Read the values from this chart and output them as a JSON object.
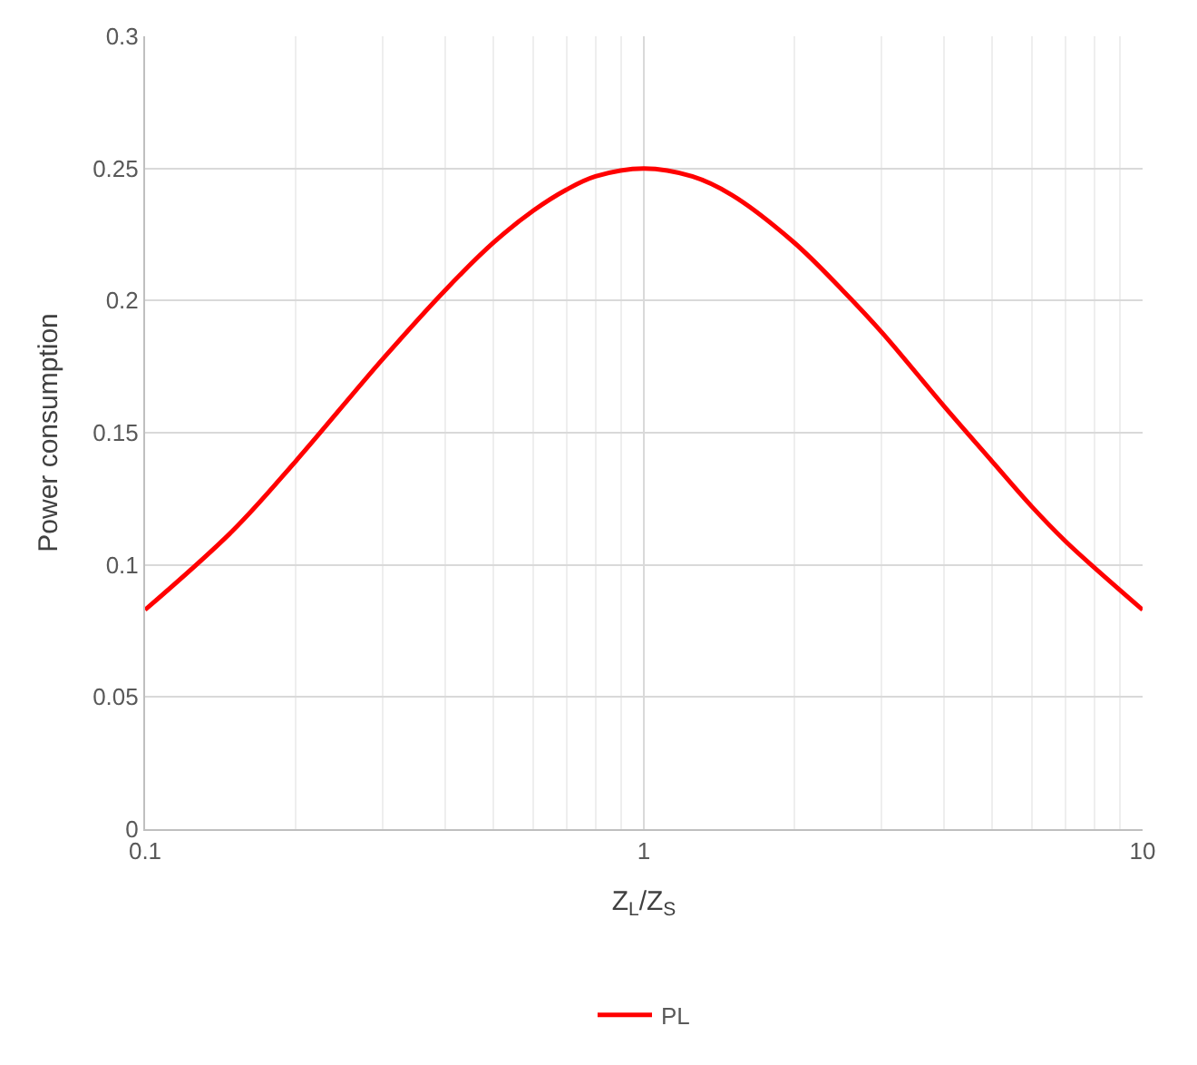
{
  "chart_data": {
    "type": "line",
    "xlabel": "Z$_{L}$/Z$_{S}$",
    "ylabel": "Power consumption",
    "x": [
      0.1,
      0.15,
      0.2,
      0.3,
      0.4,
      0.5,
      0.6,
      0.7,
      0.8,
      1,
      1.25,
      1.5,
      2,
      2.5,
      3,
      4,
      5,
      6,
      7,
      8,
      10
    ],
    "series": [
      {
        "name": "PL",
        "color": "#ff0000",
        "values": [
          0.083,
          0.113,
          0.139,
          0.178,
          0.204,
          0.222,
          0.234,
          0.242,
          0.247,
          0.25,
          0.247,
          0.24,
          0.222,
          0.204,
          0.188,
          0.16,
          0.139,
          0.122,
          0.109,
          0.099,
          0.083
        ]
      }
    ],
    "log": "x",
    "xlim": [
      0.1,
      10
    ],
    "xticks": [
      0.1,
      1,
      10
    ],
    "ylim": [
      0,
      0.3
    ],
    "yticks": [
      0,
      0.05,
      0.1,
      0.15,
      0.2,
      0.25,
      0.3
    ],
    "grid": true,
    "legend": "bottom",
    "marker": "none",
    "line_style": "solid"
  }
}
